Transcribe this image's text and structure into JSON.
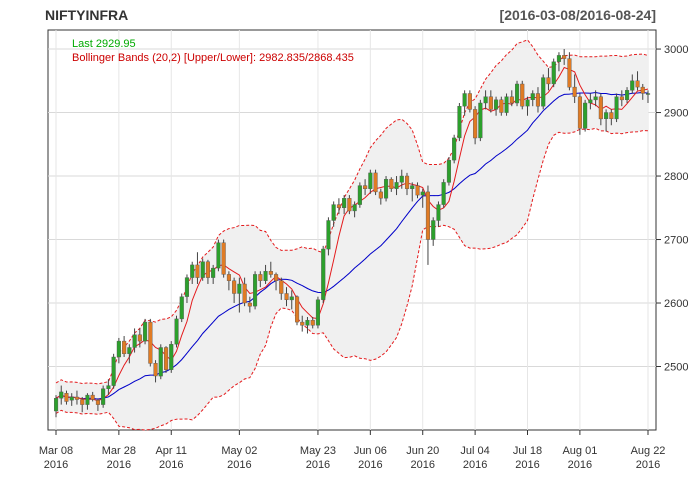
{
  "chart_data": {
    "type": "candlestick",
    "title": "NIFTYINFRA",
    "date_range": "[2016-03-08/2016-08-24]",
    "legend": {
      "last_label": "Last 2929.95",
      "bb_label": "Bollinger Bands (20,2) [Upper/Lower]: 2982.835/2868.435",
      "position": "top-left"
    },
    "ylim": [
      2400,
      3030
    ],
    "y_ticks": [
      2500,
      2600,
      2700,
      2800,
      2900,
      3000
    ],
    "y_tick_labels": [
      "2500",
      "2600",
      "2700",
      "2800",
      "2900",
      "3000"
    ],
    "x_ticks": [
      {
        "i": 0,
        "label1": "Mar 08",
        "label2": "2016"
      },
      {
        "i": 12,
        "label1": "Mar 28",
        "label2": "2016"
      },
      {
        "i": 22,
        "label1": "Apr 11",
        "label2": "2016"
      },
      {
        "i": 35,
        "label1": "May 02",
        "label2": "2016"
      },
      {
        "i": 50,
        "label1": "May 23",
        "label2": "2016"
      },
      {
        "i": 60,
        "label1": "Jun 06",
        "label2": "2016"
      },
      {
        "i": 70,
        "label1": "Jun 20",
        "label2": "2016"
      },
      {
        "i": 80,
        "label1": "Jul 04",
        "label2": "2016"
      },
      {
        "i": 90,
        "label1": "Jul 18",
        "label2": "2016"
      },
      {
        "i": 100,
        "label1": "Aug 01",
        "label2": "2016"
      },
      {
        "i": 113,
        "label1": "Aug 22",
        "label2": "2016"
      }
    ],
    "grid": true,
    "candles": [
      [
        2430,
        2455,
        2420,
        2450
      ],
      [
        2450,
        2470,
        2440,
        2460
      ],
      [
        2458,
        2462,
        2440,
        2445
      ],
      [
        2447,
        2458,
        2438,
        2452
      ],
      [
        2452,
        2462,
        2440,
        2448
      ],
      [
        2448,
        2452,
        2428,
        2440
      ],
      [
        2440,
        2458,
        2432,
        2455
      ],
      [
        2455,
        2460,
        2445,
        2448
      ],
      [
        2447,
        2450,
        2430,
        2440
      ],
      [
        2440,
        2470,
        2435,
        2465
      ],
      [
        2465,
        2480,
        2455,
        2470
      ],
      [
        2470,
        2520,
        2465,
        2515
      ],
      [
        2515,
        2545,
        2505,
        2540
      ],
      [
        2540,
        2548,
        2515,
        2520
      ],
      [
        2520,
        2535,
        2505,
        2530
      ],
      [
        2530,
        2560,
        2522,
        2550
      ],
      [
        2550,
        2560,
        2530,
        2540
      ],
      [
        2540,
        2575,
        2535,
        2570
      ],
      [
        2570,
        2575,
        2500,
        2505
      ],
      [
        2505,
        2510,
        2475,
        2485
      ],
      [
        2485,
        2535,
        2480,
        2530
      ],
      [
        2530,
        2532,
        2490,
        2495
      ],
      [
        2495,
        2540,
        2490,
        2535
      ],
      [
        2535,
        2580,
        2530,
        2575
      ],
      [
        2575,
        2615,
        2570,
        2610
      ],
      [
        2610,
        2645,
        2600,
        2640
      ],
      [
        2640,
        2665,
        2630,
        2660
      ],
      [
        2660,
        2680,
        2630,
        2640
      ],
      [
        2640,
        2670,
        2635,
        2665
      ],
      [
        2665,
        2668,
        2630,
        2640
      ],
      [
        2640,
        2660,
        2630,
        2655
      ],
      [
        2655,
        2700,
        2650,
        2695
      ],
      [
        2695,
        2700,
        2640,
        2645
      ],
      [
        2645,
        2650,
        2620,
        2635
      ],
      [
        2635,
        2640,
        2600,
        2615
      ],
      [
        2615,
        2640,
        2585,
        2630
      ],
      [
        2630,
        2640,
        2595,
        2600
      ],
      [
        2600,
        2610,
        2585,
        2595
      ],
      [
        2595,
        2650,
        2590,
        2645
      ],
      [
        2645,
        2650,
        2625,
        2635
      ],
      [
        2635,
        2660,
        2630,
        2650
      ],
      [
        2650,
        2665,
        2640,
        2645
      ],
      [
        2645,
        2648,
        2620,
        2635
      ],
      [
        2635,
        2640,
        2605,
        2615
      ],
      [
        2615,
        2625,
        2595,
        2605
      ],
      [
        2605,
        2620,
        2590,
        2610
      ],
      [
        2610,
        2612,
        2565,
        2570
      ],
      [
        2570,
        2580,
        2555,
        2565
      ],
      [
        2565,
        2578,
        2552,
        2573
      ],
      [
        2573,
        2578,
        2560,
        2565
      ],
      [
        2565,
        2610,
        2560,
        2605
      ],
      [
        2605,
        2690,
        2600,
        2685
      ],
      [
        2685,
        2735,
        2675,
        2730
      ],
      [
        2730,
        2760,
        2720,
        2755
      ],
      [
        2755,
        2765,
        2740,
        2750
      ],
      [
        2750,
        2770,
        2740,
        2765
      ],
      [
        2765,
        2770,
        2740,
        2745
      ],
      [
        2745,
        2760,
        2735,
        2755
      ],
      [
        2755,
        2790,
        2750,
        2785
      ],
      [
        2785,
        2795,
        2770,
        2780
      ],
      [
        2780,
        2810,
        2772,
        2805
      ],
      [
        2805,
        2810,
        2770,
        2775
      ],
      [
        2775,
        2780,
        2755,
        2765
      ],
      [
        2765,
        2800,
        2760,
        2795
      ],
      [
        2795,
        2798,
        2775,
        2780
      ],
      [
        2780,
        2800,
        2770,
        2790
      ],
      [
        2790,
        2810,
        2780,
        2800
      ],
      [
        2800,
        2805,
        2770,
        2780
      ],
      [
        2780,
        2790,
        2760,
        2785
      ],
      [
        2785,
        2790,
        2765,
        2770
      ],
      [
        2770,
        2780,
        2750,
        2775
      ],
      [
        2775,
        2785,
        2660,
        2700
      ],
      [
        2700,
        2735,
        2690,
        2730
      ],
      [
        2730,
        2760,
        2720,
        2755
      ],
      [
        2755,
        2795,
        2750,
        2790
      ],
      [
        2790,
        2830,
        2785,
        2825
      ],
      [
        2825,
        2865,
        2820,
        2860
      ],
      [
        2860,
        2915,
        2855,
        2910
      ],
      [
        2910,
        2935,
        2895,
        2930
      ],
      [
        2930,
        2935,
        2900,
        2905
      ],
      [
        2905,
        2910,
        2850,
        2860
      ],
      [
        2860,
        2920,
        2855,
        2915
      ],
      [
        2915,
        2935,
        2905,
        2925
      ],
      [
        2925,
        2935,
        2900,
        2905
      ],
      [
        2905,
        2925,
        2895,
        2920
      ],
      [
        2920,
        2925,
        2895,
        2900
      ],
      [
        2900,
        2930,
        2895,
        2925
      ],
      [
        2925,
        2935,
        2910,
        2915
      ],
      [
        2915,
        2950,
        2910,
        2945
      ],
      [
        2945,
        2950,
        2905,
        2910
      ],
      [
        2910,
        2925,
        2895,
        2920
      ],
      [
        2920,
        2935,
        2910,
        2930
      ],
      [
        2930,
        2940,
        2900,
        2910
      ],
      [
        2910,
        2960,
        2905,
        2955
      ],
      [
        2955,
        2970,
        2935,
        2945
      ],
      [
        2945,
        2985,
        2940,
        2980
      ],
      [
        2980,
        2995,
        2965,
        2990
      ],
      [
        2990,
        3000,
        2975,
        2985
      ],
      [
        2985,
        2995,
        2935,
        2940
      ],
      [
        2940,
        2960,
        2915,
        2925
      ],
      [
        2925,
        2930,
        2865,
        2875
      ],
      [
        2875,
        2920,
        2870,
        2915
      ],
      [
        2915,
        2930,
        2905,
        2920
      ],
      [
        2920,
        2935,
        2910,
        2925
      ],
      [
        2925,
        2930,
        2880,
        2890
      ],
      [
        2890,
        2905,
        2870,
        2900
      ],
      [
        2900,
        2905,
        2880,
        2890
      ],
      [
        2890,
        2930,
        2885,
        2925
      ],
      [
        2925,
        2935,
        2910,
        2920
      ],
      [
        2920,
        2940,
        2915,
        2935
      ],
      [
        2935,
        2960,
        2930,
        2950
      ],
      [
        2950,
        2965,
        2935,
        2940
      ],
      [
        2940,
        2945,
        2920,
        2930
      ],
      [
        2930,
        2935,
        2915,
        2930
      ]
    ],
    "colors": {
      "up": "#2ca02c",
      "down": "#e07b24",
      "wick": "#444444",
      "sma": "#e41a1c",
      "bb_mid_ma": "#0000cc",
      "band_line": "#e41a1c",
      "band_fill": "#f0f0f0",
      "last_text": "#00aa00",
      "bb_text": "#cc0000"
    }
  }
}
